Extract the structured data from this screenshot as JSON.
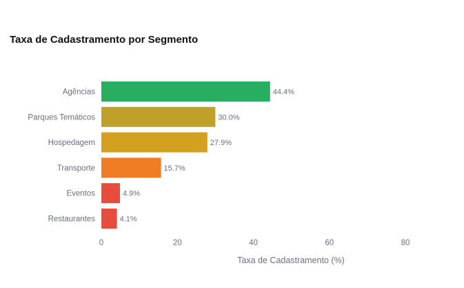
{
  "chart_data": {
    "type": "bar",
    "orientation": "horizontal",
    "title": "Taxa de Cadastramento por Segmento",
    "xlabel": "Taxa de Cadastramento (%)",
    "ylabel": "",
    "xlim": [
      0,
      80
    ],
    "x_ticks": [
      "0",
      "20",
      "40",
      "60",
      "80"
    ],
    "grid": false,
    "categories": [
      "Agências",
      "Parques Temáticos",
      "Hospedagem",
      "Transporte",
      "Eventos",
      "Restaurantes"
    ],
    "values": [
      44.4,
      30.0,
      27.9,
      15.7,
      4.9,
      4.1
    ],
    "labels": [
      "44.4%",
      "30.0%",
      "27.9%",
      "15.7%",
      "4.9%",
      "4.1%"
    ],
    "colors": [
      "#27ae60",
      "#bfa12a",
      "#d4a020",
      "#f07c24",
      "#e74c3c",
      "#e74c3c"
    ]
  }
}
